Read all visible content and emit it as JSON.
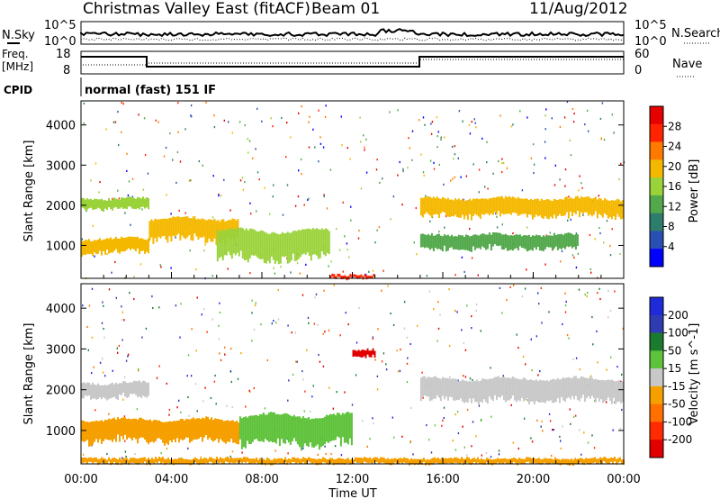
{
  "header": {
    "station": "Christmas Valley East (fitACF)",
    "beam": "Beam 01",
    "date": "11/Aug/2012"
  },
  "top_panels": {
    "nsky_label": "N.Sky",
    "nsky_ticks": [
      "10^5",
      "10^0"
    ],
    "nsearch_label": "N.Search",
    "nsearch_ticks": [
      "10^5",
      "10^0"
    ],
    "freq_label_1": "Freq.",
    "freq_label_2": "[MHz]",
    "freq_ticks": [
      "18",
      "8"
    ],
    "nave_label": "Nave",
    "nave_ticks": [
      "60",
      "0"
    ],
    "cpid_label": "CPID",
    "cpid_text": "normal (fast) 151 IF"
  },
  "axes": {
    "xlabel": "Time UT",
    "xticks": [
      "00:00",
      "04:00",
      "08:00",
      "12:00",
      "16:00",
      "20:00",
      "00:00"
    ],
    "ylabel": "Slant Range [km]",
    "yticks": [
      "1000",
      "2000",
      "3000",
      "4000"
    ]
  },
  "colors": {
    "power_scale": [
      "#0000ff",
      "#2a4fb4",
      "#2e7d6a",
      "#52a84b",
      "#9ad23a",
      "#f5b800",
      "#ff7a00",
      "#ff2400",
      "#e60000"
    ],
    "velocity_scale": [
      "#1f2ad8",
      "#2f3bb0",
      "#1c7a2e",
      "#5ec23a",
      "#c8c8c8",
      "#f5a000",
      "#ff7000",
      "#ff2a00",
      "#e00000"
    ]
  },
  "chart_data": [
    {
      "type": "heatmap",
      "title": "",
      "xlabel": "Time UT",
      "ylabel": "Slant Range [km]",
      "xlim": [
        "00:00",
        "24:00"
      ],
      "ylim": [
        180,
        4600
      ],
      "colorbar": {
        "label": "Power [dB]",
        "ticks": [
          "4",
          "8",
          "12",
          "16",
          "20",
          "24",
          "28"
        ]
      },
      "features": [
        {
          "time_start": "00:00",
          "time_end": "03:00",
          "range_km": [
            1900,
            2200
          ],
          "power_db": 14
        },
        {
          "time_start": "00:00",
          "time_end": "03:00",
          "range_km": [
            800,
            1200
          ],
          "power_db": 18
        },
        {
          "time_start": "03:00",
          "time_end": "07:00",
          "range_km": [
            1100,
            1700
          ],
          "power_db": 20
        },
        {
          "time_start": "06:00",
          "time_end": "11:00",
          "range_km": [
            600,
            1400
          ],
          "power_db": 16
        },
        {
          "time_start": "15:00",
          "time_end": "24:00",
          "range_km": [
            1700,
            2200
          ],
          "power_db": 18
        },
        {
          "time_start": "15:00",
          "time_end": "22:00",
          "range_km": [
            900,
            1300
          ],
          "power_db": 12
        },
        {
          "time_start": "11:00",
          "time_end": "13:00",
          "range_km": [
            200,
            300
          ],
          "power_db": 26
        }
      ]
    },
    {
      "type": "heatmap",
      "title": "",
      "xlabel": "Time UT",
      "ylabel": "Slant Range [km]",
      "xlim": [
        "00:00",
        "24:00"
      ],
      "ylim": [
        180,
        4600
      ],
      "colorbar": {
        "label": "Velocity [m s^-1]",
        "ticks": [
          "200",
          "100",
          "50",
          "15",
          "-15",
          "-50",
          "-100",
          "-200"
        ]
      },
      "features": [
        {
          "time_start": "00:00",
          "time_end": "03:00",
          "range_km": [
            1800,
            2200
          ],
          "velocity_ms": 0
        },
        {
          "time_start": "00:00",
          "time_end": "07:00",
          "range_km": [
            700,
            1300
          ],
          "velocity_ms": -20
        },
        {
          "time_start": "07:00",
          "time_end": "12:00",
          "range_km": [
            600,
            1400
          ],
          "velocity_ms": 40
        },
        {
          "time_start": "12:00",
          "time_end": "13:00",
          "range_km": [
            2800,
            3000
          ],
          "velocity_ms": -200
        },
        {
          "time_start": "15:00",
          "time_end": "24:00",
          "range_km": [
            1700,
            2300
          ],
          "velocity_ms": 0
        },
        {
          "time_start": "00:00",
          "time_end": "24:00",
          "range_km": [
            200,
            350
          ],
          "velocity_ms": -60
        }
      ]
    }
  ]
}
